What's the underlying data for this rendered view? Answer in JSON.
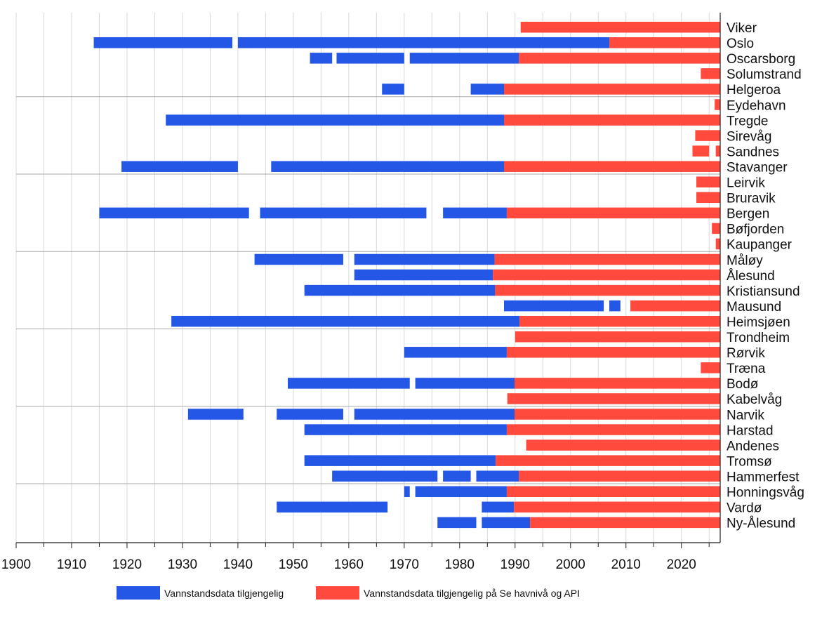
{
  "chart_data": {
    "type": "bar",
    "orientation": "horizontal",
    "subtype": "timeline-gantt",
    "title": "",
    "xlabel": "",
    "ylabel": "",
    "xlim": [
      1900,
      2027
    ],
    "xticks": [
      1900,
      1910,
      1920,
      1930,
      1940,
      1950,
      1960,
      1970,
      1980,
      1990,
      2000,
      2010,
      2020
    ],
    "grid": true,
    "legend_position": "bottom",
    "colors": {
      "blue": "#2457e6",
      "red": "#ff4a3d",
      "grid": "#d9d9d9",
      "separator": "#aaaaaa"
    },
    "series": [
      {
        "key": "blue",
        "name": "Vannstandsdata tilgjengelig"
      },
      {
        "key": "red",
        "name": "Vannstandsdata tilgjengelig på Se havnivå og API"
      }
    ],
    "stations": [
      {
        "name": "Viker",
        "blue": [],
        "red": [
          [
            1991.0,
            2027
          ]
        ]
      },
      {
        "name": "Oslo",
        "blue": [
          [
            1914.0,
            1939.0
          ],
          [
            1940.0,
            2007.0
          ]
        ],
        "red": [
          [
            2007.0,
            2027
          ]
        ]
      },
      {
        "name": "Oscarsborg",
        "blue": [
          [
            1953.0,
            1957.0
          ],
          [
            1957.8,
            1970.0
          ],
          [
            1971.0,
            1990.7
          ]
        ],
        "red": [
          [
            1990.7,
            2027
          ]
        ]
      },
      {
        "name": "Solumstrand",
        "blue": [],
        "red": [
          [
            2023.5,
            2027
          ]
        ]
      },
      {
        "name": "Helgeroa",
        "blue": [
          [
            1966.0,
            1970.0
          ],
          [
            1982.0,
            1988.0
          ]
        ],
        "red": [
          [
            1988.0,
            2027
          ]
        ]
      },
      {
        "name": "Eydehavn",
        "blue": [],
        "red": [
          [
            2026.0,
            2027
          ]
        ]
      },
      {
        "name": "Tregde",
        "blue": [
          [
            1927.0,
            1988.0
          ]
        ],
        "red": [
          [
            1988.0,
            2027
          ]
        ]
      },
      {
        "name": "Sirevåg",
        "blue": [],
        "red": [
          [
            2022.5,
            2027
          ]
        ]
      },
      {
        "name": "Sandnes",
        "blue": [],
        "red": [
          [
            2022.0,
            2025.0
          ],
          [
            2026.2,
            2027
          ]
        ]
      },
      {
        "name": "Stavanger",
        "blue": [
          [
            1919.0,
            1940.0
          ],
          [
            1946.0,
            1988.0
          ]
        ],
        "red": [
          [
            1988.0,
            2027
          ]
        ]
      },
      {
        "name": "Leirvik",
        "blue": [],
        "red": [
          [
            2022.7,
            2027
          ]
        ]
      },
      {
        "name": "Bruravik",
        "blue": [],
        "red": [
          [
            2022.7,
            2027
          ]
        ]
      },
      {
        "name": "Bergen",
        "blue": [
          [
            1915.0,
            1942.0
          ],
          [
            1944.0,
            1974.0
          ],
          [
            1977.0,
            1988.5
          ]
        ],
        "red": [
          [
            1988.5,
            2027
          ]
        ]
      },
      {
        "name": "Bøfjorden",
        "blue": [],
        "red": [
          [
            2025.5,
            2027
          ]
        ]
      },
      {
        "name": "Kaupanger",
        "blue": [],
        "red": [
          [
            2026.2,
            2027
          ]
        ]
      },
      {
        "name": "Måløy",
        "blue": [
          [
            1943.0,
            1959.0
          ],
          [
            1961.0,
            1986.3
          ]
        ],
        "red": [
          [
            1986.3,
            2027
          ]
        ]
      },
      {
        "name": "Ålesund",
        "blue": [
          [
            1961.0,
            1986.0
          ]
        ],
        "red": [
          [
            1986.0,
            2027
          ]
        ]
      },
      {
        "name": "Kristiansund",
        "blue": [
          [
            1952.0,
            1986.4
          ]
        ],
        "red": [
          [
            1986.4,
            2027
          ]
        ]
      },
      {
        "name": "Mausund",
        "blue": [
          [
            1988.0,
            2006.0
          ],
          [
            2007.0,
            2009.0
          ]
        ],
        "red": [
          [
            2010.8,
            2027
          ]
        ]
      },
      {
        "name": "Heimsjøen",
        "blue": [
          [
            1928.0,
            1990.8
          ]
        ],
        "red": [
          [
            1990.8,
            2027
          ]
        ]
      },
      {
        "name": "Trondheim",
        "blue": [],
        "red": [
          [
            1990.0,
            2027
          ]
        ]
      },
      {
        "name": "Rørvik",
        "blue": [
          [
            1970.0,
            1988.5
          ]
        ],
        "red": [
          [
            1988.5,
            2027
          ]
        ]
      },
      {
        "name": "Træna",
        "blue": [],
        "red": [
          [
            2023.5,
            2027
          ]
        ]
      },
      {
        "name": "Bodø",
        "blue": [
          [
            1949.0,
            1971.0
          ],
          [
            1972.0,
            1989.9
          ]
        ],
        "red": [
          [
            1989.9,
            2027
          ]
        ]
      },
      {
        "name": "Kabelvåg",
        "blue": [],
        "red": [
          [
            1988.6,
            2027
          ]
        ]
      },
      {
        "name": "Narvik",
        "blue": [
          [
            1931.0,
            1941.0
          ],
          [
            1947.0,
            1959.0
          ],
          [
            1961.0,
            1989.9
          ]
        ],
        "red": [
          [
            1989.9,
            2027
          ]
        ]
      },
      {
        "name": "Harstad",
        "blue": [
          [
            1952.0,
            1988.5
          ]
        ],
        "red": [
          [
            1988.5,
            2027
          ]
        ]
      },
      {
        "name": "Andenes",
        "blue": [],
        "red": [
          [
            1992.0,
            2027
          ]
        ]
      },
      {
        "name": "Tromsø",
        "blue": [
          [
            1952.0,
            1986.5
          ]
        ],
        "red": [
          [
            1986.5,
            2027
          ]
        ]
      },
      {
        "name": "Hammerfest",
        "blue": [
          [
            1957.0,
            1976.0
          ],
          [
            1977.0,
            1982.0
          ],
          [
            1983.0,
            1990.7
          ]
        ],
        "red": [
          [
            1990.7,
            2027
          ]
        ]
      },
      {
        "name": "Honningsvåg",
        "blue": [
          [
            1970.0,
            1971.0
          ],
          [
            1972.0,
            1988.5
          ]
        ],
        "red": [
          [
            1988.5,
            2027
          ]
        ]
      },
      {
        "name": "Vardø",
        "blue": [
          [
            1947.0,
            1967.0
          ],
          [
            1984.0,
            1989.8
          ]
        ],
        "red": [
          [
            1989.8,
            2027
          ]
        ]
      },
      {
        "name": "Ny-Ålesund",
        "blue": [
          [
            1976.0,
            1983.0
          ],
          [
            1984.0,
            1992.7
          ]
        ],
        "red": [
          [
            1992.7,
            2027
          ]
        ]
      }
    ]
  }
}
